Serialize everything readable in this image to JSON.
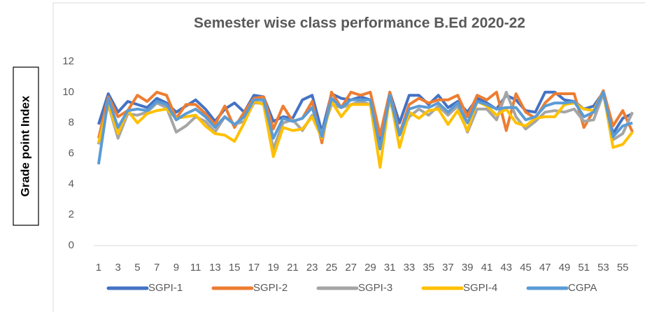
{
  "chart_data": {
    "type": "line",
    "title": "Semester wise class performance B.Ed 2020-22",
    "y_label": "Grade point Index",
    "categories": [
      "1",
      null,
      "3",
      null,
      "5",
      null,
      "7",
      null,
      "9",
      null,
      "11",
      null,
      "13",
      null,
      "15",
      null,
      "17",
      null,
      "19",
      null,
      "21",
      null,
      "23",
      null,
      "25",
      null,
      "27",
      null,
      "29",
      null,
      "31",
      null,
      "33",
      null,
      "35",
      null,
      "37",
      null,
      "39",
      null,
      "41",
      null,
      "43",
      null,
      "45",
      null,
      "47",
      null,
      "49",
      null,
      "51",
      null,
      "53",
      null,
      "55",
      null
    ],
    "ylim": [
      0,
      12
    ],
    "yticks": [
      0,
      2,
      4,
      6,
      8,
      10,
      12
    ],
    "grid": false,
    "legend": "bottom",
    "series": [
      {
        "name": "SGPI-1",
        "color": "#4472c4",
        "values": [
          7.9,
          9.9,
          8.7,
          9.4,
          9.2,
          9.0,
          9.6,
          9.3,
          8.7,
          9.1,
          9.5,
          8.9,
          8.1,
          8.9,
          9.3,
          8.7,
          9.8,
          9.7,
          8.1,
          8.4,
          8.3,
          9.5,
          9.8,
          7.4,
          9.9,
          9.6,
          9.5,
          9.7,
          9.5,
          6.6,
          10.0,
          8.0,
          9.8,
          9.8,
          9.2,
          9.8,
          9.0,
          9.4,
          8.7,
          9.6,
          9.3,
          8.9,
          9.8,
          9.5,
          8.8,
          8.7,
          10.0,
          10.0,
          9.5,
          9.4,
          8.9,
          9.1,
          10.0,
          7.3,
          8.3,
          8.6
        ]
      },
      {
        "name": "SGPI-2",
        "color": "#ed7d31",
        "values": [
          7.0,
          9.7,
          8.4,
          8.8,
          9.8,
          9.4,
          10.0,
          9.8,
          8.3,
          9.2,
          9.2,
          8.6,
          7.9,
          9.1,
          7.7,
          8.7,
          9.6,
          9.7,
          7.6,
          9.1,
          8.1,
          8.3,
          9.4,
          6.7,
          10.0,
          9.0,
          10.0,
          9.8,
          10.0,
          7.2,
          10.0,
          7.3,
          9.2,
          9.6,
          9.3,
          9.5,
          9.5,
          9.8,
          8.4,
          9.8,
          9.5,
          10.0,
          7.5,
          9.9,
          8.7,
          8.3,
          9.3,
          9.9,
          9.9,
          9.9,
          7.7,
          8.8,
          10.1,
          7.8,
          8.8,
          7.4
        ]
      },
      {
        "name": "SGPI-3",
        "color": "#a5a5a5",
        "values": [
          6.6,
          9.2,
          7.0,
          8.6,
          8.5,
          8.7,
          9.3,
          9.0,
          7.4,
          7.8,
          8.4,
          8.1,
          7.4,
          8.4,
          7.9,
          8.1,
          9.3,
          9.3,
          6.3,
          8.0,
          8.2,
          7.5,
          8.5,
          7.3,
          9.2,
          9.0,
          9.2,
          9.4,
          9.2,
          6.3,
          9.5,
          7.2,
          8.4,
          8.9,
          8.5,
          9.1,
          8.5,
          9.1,
          7.4,
          8.9,
          8.9,
          8.2,
          10.0,
          8.4,
          7.6,
          8.1,
          8.7,
          8.8,
          8.7,
          8.9,
          8.1,
          8.2,
          9.9,
          6.9,
          7.3,
          8.7
        ]
      },
      {
        "name": "SGPI-4",
        "color": "#ffc000",
        "values": [
          6.7,
          9.2,
          7.3,
          8.8,
          8.0,
          8.6,
          8.8,
          8.9,
          8.3,
          8.4,
          8.5,
          7.8,
          7.3,
          7.2,
          6.8,
          8.0,
          9.4,
          9.2,
          5.8,
          7.7,
          7.5,
          7.6,
          8.4,
          7.0,
          9.4,
          8.4,
          9.2,
          9.2,
          9.2,
          5.1,
          9.8,
          6.4,
          8.7,
          8.3,
          8.8,
          8.9,
          7.9,
          8.8,
          7.5,
          9.4,
          9.1,
          8.5,
          8.9,
          8.0,
          7.8,
          8.3,
          8.4,
          8.4,
          9.2,
          9.3,
          8.9,
          8.8,
          10.0,
          6.4,
          6.6,
          7.4
        ]
      },
      {
        "name": "CGPA",
        "color": "#5b9bd5",
        "values": [
          5.3,
          9.6,
          7.7,
          8.8,
          8.9,
          8.8,
          9.4,
          9.2,
          8.2,
          8.6,
          8.9,
          8.4,
          7.7,
          8.4,
          7.9,
          8.4,
          9.5,
          9.5,
          7.0,
          8.3,
          8.1,
          8.3,
          9.0,
          7.1,
          9.6,
          9.0,
          9.5,
          9.5,
          9.5,
          6.3,
          9.8,
          7.2,
          8.9,
          9.1,
          9.0,
          9.3,
          8.7,
          9.3,
          8.0,
          9.4,
          9.2,
          8.9,
          9.0,
          9.0,
          8.2,
          8.4,
          9.1,
          9.3,
          9.3,
          9.4,
          8.4,
          8.7,
          10.0,
          7.1,
          7.8,
          8.0
        ]
      }
    ]
  }
}
